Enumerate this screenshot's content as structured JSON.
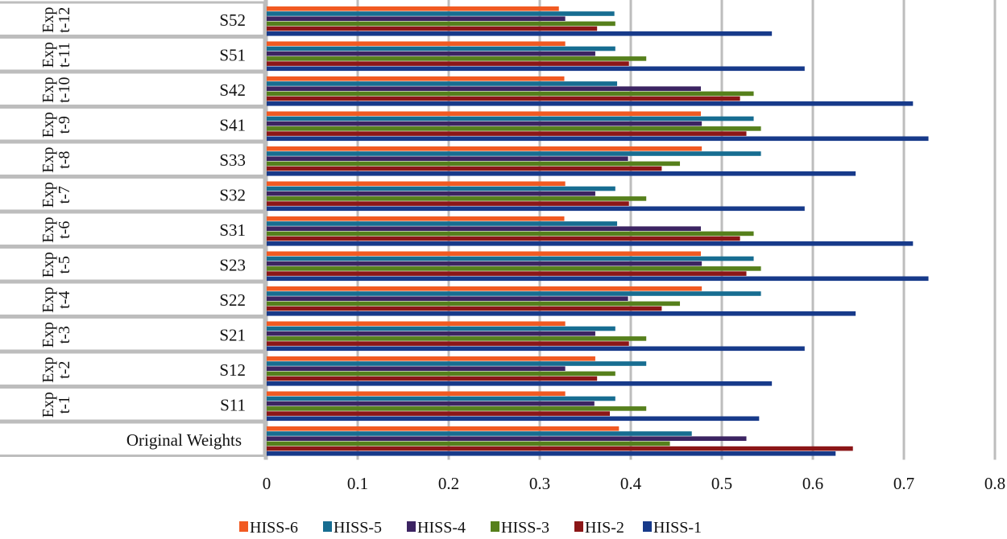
{
  "chart_data": {
    "type": "bar",
    "orientation": "horizontal",
    "title": "",
    "xlabel": "",
    "ylabel": "",
    "xlim": [
      0,
      0.8
    ],
    "x_ticks": [
      "0",
      "0.1",
      "0.2",
      "0.3",
      "0.4",
      "0.5",
      "0.6",
      "0.7",
      "0.8"
    ],
    "grid": true,
    "legend_position": "bottom",
    "categories": [
      "S52",
      "S51",
      "S42",
      "S41",
      "S33",
      "S32",
      "S31",
      "S23",
      "S22",
      "S21",
      "S12",
      "S11",
      "Original Weights"
    ],
    "groups": [
      "Exp t-12",
      "Exp t-11",
      "Exp t-10",
      "Exp t-9",
      "Exp t-8",
      "Exp t-7",
      "Exp t-6",
      "Exp t-5",
      "Exp t-4",
      "Exp t-3",
      "Exp t-2",
      "Exp t-1",
      ""
    ],
    "series": [
      {
        "name": "HISS-6",
        "color": "#f15a22",
        "values": [
          0.321,
          0.328,
          0.327,
          0.477,
          0.478,
          0.328,
          0.327,
          0.477,
          0.478,
          0.328,
          0.361,
          0.328,
          0.387
        ]
      },
      {
        "name": "HISS-5",
        "color": "#176d91",
        "values": [
          0.382,
          0.383,
          0.385,
          0.535,
          0.543,
          0.383,
          0.385,
          0.535,
          0.543,
          0.383,
          0.417,
          0.383,
          0.467
        ]
      },
      {
        "name": "HISS-4",
        "color": "#3c2462",
        "values": [
          0.328,
          0.361,
          0.477,
          0.478,
          0.397,
          0.361,
          0.477,
          0.478,
          0.397,
          0.361,
          0.328,
          0.36,
          0.527
        ]
      },
      {
        "name": "HISS-3",
        "color": "#56801c",
        "values": [
          0.383,
          0.417,
          0.535,
          0.543,
          0.454,
          0.417,
          0.535,
          0.543,
          0.454,
          0.417,
          0.383,
          0.417,
          0.443
        ]
      },
      {
        "name": "HIS-2",
        "color": "#8b1617",
        "values": [
          0.363,
          0.398,
          0.52,
          0.527,
          0.434,
          0.398,
          0.52,
          0.527,
          0.434,
          0.398,
          0.363,
          0.377,
          0.644
        ]
      },
      {
        "name": "HISS-1",
        "color": "#173a8a",
        "values": [
          0.555,
          0.591,
          0.71,
          0.727,
          0.647,
          0.591,
          0.71,
          0.727,
          0.647,
          0.591,
          0.555,
          0.541,
          0.625
        ]
      }
    ]
  }
}
